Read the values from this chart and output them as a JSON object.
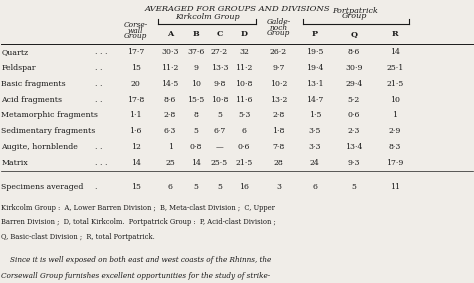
{
  "title": "Averaged for Groups and Divisions",
  "rows": [
    {
      "label": "Quartz",
      "dots": ". . .",
      "corse": "17·7",
      "A": "30·3",
      "B": "37·6",
      "C": "27·2",
      "D": "32",
      "galde": "26·2",
      "P": "19·5",
      "Q": "8·6",
      "R": "14"
    },
    {
      "label": "Feldspar",
      "dots": ". .",
      "corse": "15",
      "A": "11·2",
      "B": "9",
      "C": "13·3",
      "D": "11·2",
      "galde": "9·7",
      "P": "19·4",
      "Q": "30·9",
      "R": "25·1"
    },
    {
      "label": "Basic fragments",
      "dots": ". .",
      "corse": "20",
      "A": "14·5",
      "B": "10",
      "C": "9·8",
      "D": "10·8",
      "galde": "10·2",
      "P": "13·1",
      "Q": "29·4",
      "R": "21·5"
    },
    {
      "label": "Acid fragments",
      "dots": ". .",
      "corse": "17·8",
      "A": "8·6",
      "B": "15·5",
      "C": "10·8",
      "D": "11·6",
      "galde": "13·2",
      "P": "14·7",
      "Q": "5·2",
      "R": "10"
    },
    {
      "label": "Metamorphic fragments",
      "dots": "",
      "corse": "1·1",
      "A": "2·8",
      "B": "8",
      "C": "5",
      "D": "5·3",
      "galde": "2·8",
      "P": "1·5",
      "Q": "0·6",
      "R": "1"
    },
    {
      "label": "Sedimentary fragments",
      "dots": "",
      "corse": "1·6",
      "A": "6·3",
      "B": "5",
      "C": "6·7",
      "D": "6",
      "galde": "1·8",
      "P": "3·5",
      "Q": "2·3",
      "R": "2·9"
    },
    {
      "label": "Augite, hornblende",
      "dots": ". .",
      "corse": "12",
      "A": "1",
      "B": "0·8",
      "C": "—",
      "D": "0·6",
      "galde": "7·8",
      "P": "3·3",
      "Q": "13·4",
      "R": "8·3"
    },
    {
      "label": "Matrix",
      "dots": ". . .",
      "corse": "14",
      "A": "25",
      "B": "14",
      "C": "25·5",
      "D": "21·5",
      "galde": "28",
      "P": "24",
      "Q": "9·3",
      "R": "17·9"
    }
  ],
  "specimens": {
    "label": "Specimens averaged",
    "dots": ".",
    "corse": "15",
    "A": "6",
    "B": "5",
    "C": "5",
    "D": "16",
    "galde": "3",
    "P": "6",
    "Q": "5",
    "R": "11"
  },
  "footnote1": "Kirkcolm Group :  A, Lower Barren Division ;  B, Meta-clast Division ;  C, Upper",
  "footnote2": "Barren Division ;  D, total Kirkcolm.  Portpatrick Group :  P, Acid-clast Division ;",
  "footnote3": "Q, Basic-clast Division ;  R, total Portpatrick.",
  "footer1": "    Since it is well exposed on both east and west coasts of the Rhinns, the",
  "footer2": "Corsewall Group furnishes excellent opportunities for the study of strike-",
  "bg_color": "#f0ede8",
  "text_color": "#1a1a1a",
  "col_x": {
    "label": 0.0,
    "dots": 0.198,
    "corse": 0.285,
    "A": 0.358,
    "B": 0.413,
    "C": 0.463,
    "D": 0.515,
    "galde": 0.588,
    "P": 0.665,
    "Q": 0.748,
    "R": 0.835
  }
}
